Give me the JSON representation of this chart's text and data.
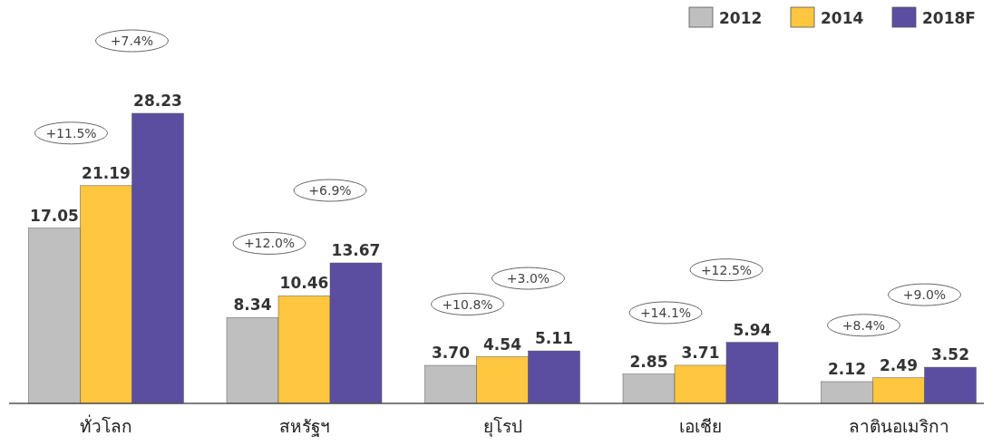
{
  "chart_data": {
    "type": "bar",
    "categories": [
      "ทั่วโลก",
      "สหรัฐฯ",
      "ยุโรป",
      "เอเชีย",
      "ลาตินอเมริกา"
    ],
    "series": [
      {
        "name": "2012",
        "color": "#bfbfbf",
        "values": [
          17.05,
          8.34,
          3.7,
          2.85,
          2.12
        ],
        "value_labels": [
          "17.05",
          "8.34",
          "3.70",
          "2.85",
          "2.12"
        ]
      },
      {
        "name": "2014",
        "color": "#ffc640",
        "values": [
          21.19,
          10.46,
          4.54,
          3.71,
          2.49
        ],
        "value_labels": [
          "21.19",
          "10.46",
          "4.54",
          "3.71",
          "2.49"
        ]
      },
      {
        "name": "2018F",
        "color": "#5b4ea0",
        "values": [
          28.23,
          13.67,
          5.11,
          5.94,
          3.52
        ],
        "value_labels": [
          "28.23",
          "13.67",
          "5.11",
          "5.94",
          "3.52"
        ]
      }
    ],
    "annotations": [
      "+11.5%",
      "+7.4%",
      "+12.0%",
      "+6.9%",
      "+10.8%",
      "+3.0%",
      "+14.1%",
      "+12.5%",
      "+8.4%",
      "+9.0%"
    ],
    "legend": "top right"
  }
}
